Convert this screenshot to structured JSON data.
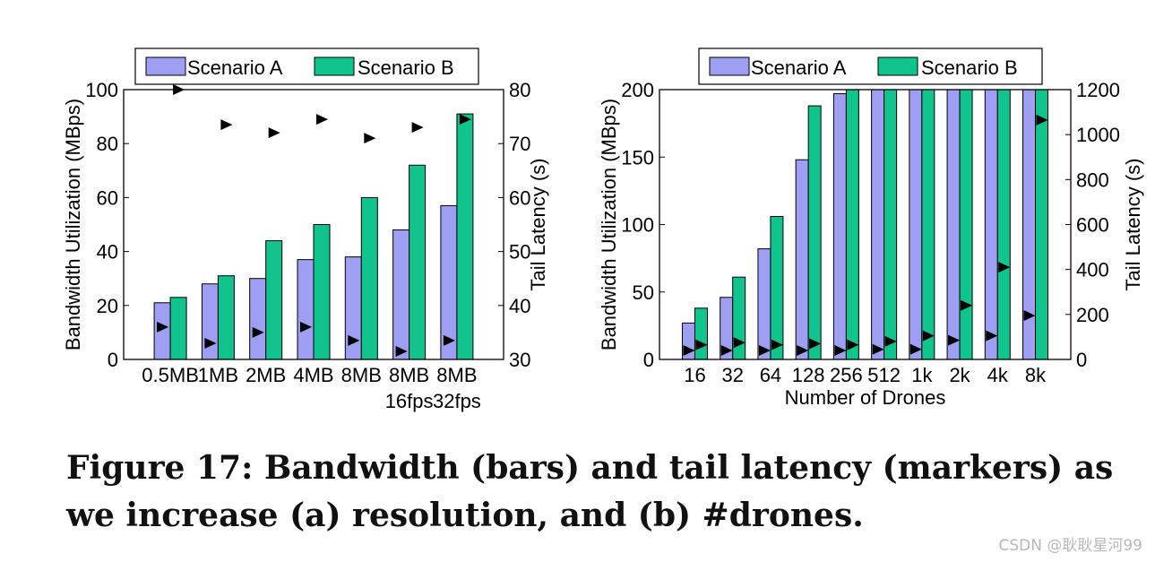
{
  "chart_data": [
    {
      "type": "bar",
      "id": "a",
      "categories": [
        [
          "0.5MB"
        ],
        [
          "1MB"
        ],
        [
          "2MB"
        ],
        [
          "4MB"
        ],
        [
          "8MB"
        ],
        [
          "8MB",
          "16fps"
        ],
        [
          "8MB",
          "32fps"
        ]
      ],
      "series": [
        {
          "name": "Scenario A",
          "values": [
            21,
            28,
            30,
            37,
            38,
            48,
            57
          ]
        },
        {
          "name": "Scenario B",
          "values": [
            23,
            31,
            44,
            50,
            60,
            72,
            91
          ]
        }
      ],
      "tail_latency": {
        "name": "Tail Latency",
        "values": [
          36,
          33,
          35,
          36,
          33.5,
          31.5,
          33.5,
          80,
          73.5,
          72,
          74.5,
          71,
          73,
          74.5
        ]
      },
      "latency_points": [
        {
          "cat": 0,
          "slot": "left",
          "y": 36
        },
        {
          "cat": 1,
          "slot": "left",
          "y": 33
        },
        {
          "cat": 2,
          "slot": "left",
          "y": 35
        },
        {
          "cat": 3,
          "slot": "left",
          "y": 36
        },
        {
          "cat": 4,
          "slot": "left",
          "y": 33.5
        },
        {
          "cat": 5,
          "slot": "left",
          "y": 31.5
        },
        {
          "cat": 6,
          "slot": "left",
          "y": 33.5
        },
        {
          "cat": 0,
          "slot": "right",
          "y": 80
        },
        {
          "cat": 1,
          "slot": "right",
          "y": 73.5
        },
        {
          "cat": 2,
          "slot": "right",
          "y": 72
        },
        {
          "cat": 3,
          "slot": "right",
          "y": 74.5
        },
        {
          "cat": 4,
          "slot": "right",
          "y": 71
        },
        {
          "cat": 5,
          "slot": "right",
          "y": 73
        },
        {
          "cat": 6,
          "slot": "right",
          "y": 74.5
        }
      ],
      "ylabel": "Bandwidth Utilization (MBps)",
      "y2label": "Tail Latency (s)",
      "xlabel": "",
      "ylim": [
        0,
        100
      ],
      "y2lim": [
        30,
        80
      ],
      "yticks": [
        0,
        20,
        40,
        60,
        80,
        100
      ],
      "y2ticks": [
        30,
        40,
        50,
        60,
        70,
        80
      ],
      "legend": [
        "Scenario A",
        "Scenario B"
      ],
      "legend_position": "top"
    },
    {
      "type": "bar",
      "id": "b",
      "categories": [
        [
          "16"
        ],
        [
          "32"
        ],
        [
          "64"
        ],
        [
          "128"
        ],
        [
          "256"
        ],
        [
          "512"
        ],
        [
          "1k"
        ],
        [
          "2k"
        ],
        [
          "4k"
        ],
        [
          "8k"
        ]
      ],
      "series": [
        {
          "name": "Scenario A",
          "values": [
            27,
            46,
            82,
            148,
            197,
            200,
            200,
            200,
            200,
            200
          ]
        },
        {
          "name": "Scenario B",
          "values": [
            38,
            61,
            106,
            188,
            200,
            200,
            200,
            200,
            200,
            200
          ]
        }
      ],
      "latency_points": [
        {
          "cat": 0,
          "slot": "left",
          "y": 40
        },
        {
          "cat": 0,
          "slot": "right",
          "y": 65
        },
        {
          "cat": 1,
          "slot": "left",
          "y": 40
        },
        {
          "cat": 1,
          "slot": "right",
          "y": 75
        },
        {
          "cat": 2,
          "slot": "left",
          "y": 40
        },
        {
          "cat": 2,
          "slot": "right",
          "y": 65
        },
        {
          "cat": 3,
          "slot": "left",
          "y": 40
        },
        {
          "cat": 3,
          "slot": "right",
          "y": 70
        },
        {
          "cat": 4,
          "slot": "left",
          "y": 40
        },
        {
          "cat": 4,
          "slot": "right",
          "y": 65
        },
        {
          "cat": 5,
          "slot": "left",
          "y": 45
        },
        {
          "cat": 5,
          "slot": "right",
          "y": 80
        },
        {
          "cat": 6,
          "slot": "left",
          "y": 45
        },
        {
          "cat": 6,
          "slot": "right",
          "y": 105
        },
        {
          "cat": 7,
          "slot": "left",
          "y": 85
        },
        {
          "cat": 7,
          "slot": "right",
          "y": 240
        },
        {
          "cat": 8,
          "slot": "left",
          "y": 105
        },
        {
          "cat": 8,
          "slot": "right",
          "y": 410
        },
        {
          "cat": 9,
          "slot": "left",
          "y": 195
        },
        {
          "cat": 9,
          "slot": "right",
          "y": 1065
        }
      ],
      "ylabel": "Bandwidth Utilization (MBps)",
      "y2label": "Tail Latency (s)",
      "xlabel": "Number of Drones",
      "ylim": [
        0,
        200
      ],
      "y2lim": [
        0,
        1200
      ],
      "yticks": [
        0,
        50,
        100,
        150,
        200
      ],
      "y2ticks": [
        0,
        200,
        400,
        600,
        800,
        1000,
        1200
      ],
      "legend": [
        "Scenario A",
        "Scenario B"
      ],
      "legend_position": "top"
    }
  ],
  "colors": {
    "scenario_a": "#9e9ef2",
    "scenario_b": "#11c38c",
    "marker": "#000000"
  },
  "caption": "Figure 17:  Bandwidth (bars) and tail latency (markers) as we increase (a) resolution, and (b) #drones.",
  "watermark": "CSDN @耿耿星河99"
}
